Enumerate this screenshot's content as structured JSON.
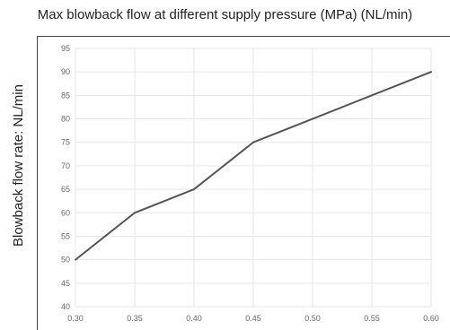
{
  "chart_data": {
    "type": "line",
    "title": "Max blowback flow at different supply pressure (MPa) (NL/min)",
    "xlabel": "",
    "ylabel": "Blowback flow rate: NL/min",
    "x": [
      0.3,
      0.35,
      0.4,
      0.45,
      0.5,
      0.55,
      0.6
    ],
    "x_tick_labels": [
      "0.30",
      "0.35",
      "0.40",
      "0.45",
      "0.50",
      "0.55",
      "0.60"
    ],
    "y_tick_labels": [
      "40",
      "45",
      "50",
      "55",
      "60",
      "65",
      "70",
      "75",
      "80",
      "85",
      "90",
      "95"
    ],
    "series": [
      {
        "values": [
          50,
          60,
          65,
          75,
          80,
          85,
          90
        ]
      }
    ],
    "xlim": [
      0.3,
      0.6
    ],
    "ylim": [
      40,
      95
    ],
    "grid": true,
    "legend": "none",
    "colors": {
      "line": "#555555",
      "grid": "#e6e6e6",
      "frame": "#444444",
      "tick": "#666666"
    }
  }
}
